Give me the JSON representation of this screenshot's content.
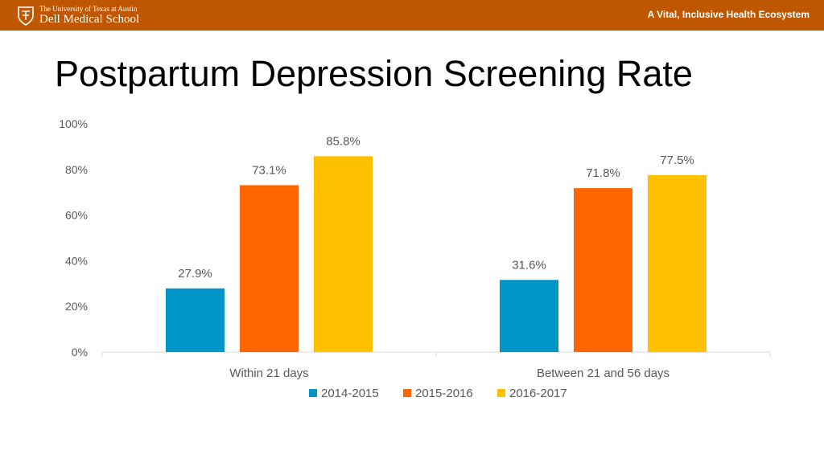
{
  "header": {
    "logo_line1": "The University of Texas at Austin",
    "logo_line2": "Dell Medical School",
    "tagline": "A Vital, Inclusive Health Ecosystem",
    "banner_color": "#bf5700"
  },
  "slide": {
    "title": "Postpartum Depression Screening Rate"
  },
  "chart_data": {
    "type": "bar",
    "title": "",
    "categories": [
      "Within 21 days",
      "Between 21 and 56 days"
    ],
    "series": [
      {
        "name": "2014-2015",
        "color": "#0096c8",
        "values": [
          27.9,
          31.6
        ],
        "labels": [
          "27.9%",
          "31.6%"
        ]
      },
      {
        "name": "2015-2016",
        "color": "#ff6600",
        "values": [
          73.1,
          71.8
        ],
        "labels": [
          "73.1%",
          "71.8%"
        ]
      },
      {
        "name": "2016-2017",
        "color": "#ffc000",
        "values": [
          85.8,
          77.5
        ],
        "labels": [
          "85.8%",
          "77.5%"
        ]
      }
    ],
    "ylim": [
      0,
      100
    ],
    "yticks": [
      0,
      20,
      40,
      60,
      80,
      100
    ],
    "ytick_labels": [
      "0%",
      "20%",
      "40%",
      "60%",
      "80%",
      "100%"
    ],
    "xlabel": "",
    "ylabel": "",
    "grid": false,
    "legend_position": "bottom"
  }
}
